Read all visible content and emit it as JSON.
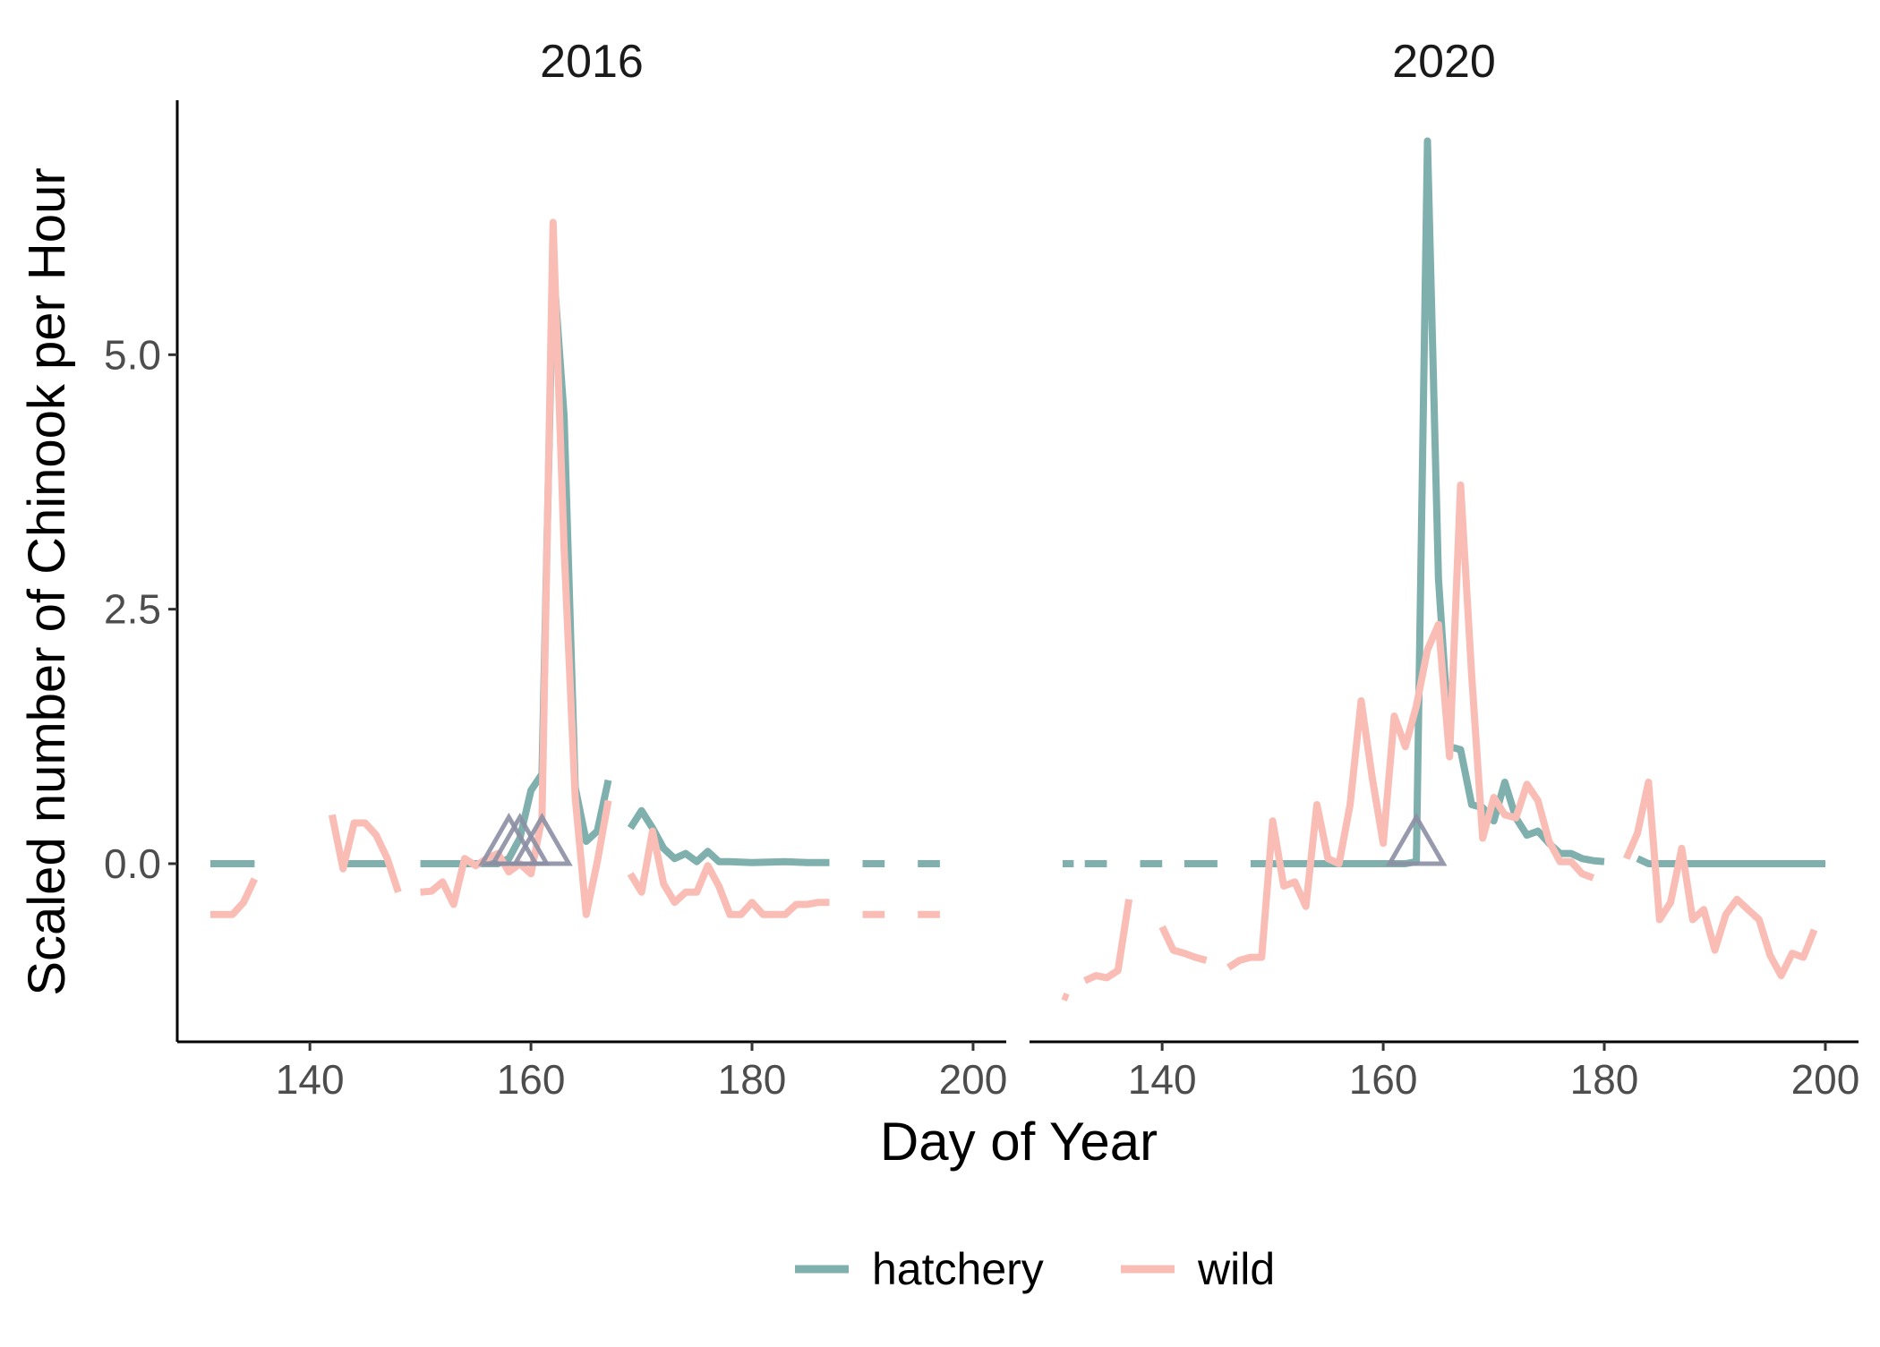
{
  "chart_data": {
    "type": "line",
    "xlabel": "Day of Year",
    "ylabel": "Scaled number of Chinook per Hour",
    "xlim": [
      128,
      203
    ],
    "ylim": [
      -1.75,
      7.5
    ],
    "x_ticks": [
      140,
      160,
      180,
      200
    ],
    "y_ticks": [
      0,
      2.5,
      5
    ],
    "y_tick_labels": [
      "0.0",
      "2.5",
      "5.0"
    ],
    "grid": false,
    "legend": {
      "position": "bottom",
      "entries": [
        "hatchery",
        "wild"
      ]
    },
    "colors": {
      "hatchery": "#7FB0AE",
      "wild": "#F9BDB5",
      "marker": "#8C8FA3"
    },
    "panels": [
      {
        "title": "2016",
        "markers": [
          158,
          159,
          161
        ],
        "series": [
          {
            "name": "hatchery",
            "segments": [
              [
                [
                  131,
                  0
                ],
                [
                  135,
                  0
                ]
              ],
              [
                [
                  143,
                  0
                ],
                [
                  147,
                  0
                ]
              ],
              [
                [
                  150,
                  0
                ],
                [
                  152,
                  0
                ],
                [
                  154,
                  0
                ],
                [
                  156,
                  0
                ],
                [
                  157,
                  0
                ],
                [
                  158,
                  0.05
                ],
                [
                  159,
                  0.25
                ],
                [
                  160,
                  0.72
                ],
                [
                  161,
                  0.88
                ],
                [
                  162,
                  5.9
                ],
                [
                  163,
                  4.4
                ],
                [
                  164,
                  0.75
                ],
                [
                  165,
                  0.22
                ],
                [
                  166,
                  0.32
                ],
                [
                  167,
                  0.82
                ]
              ],
              [
                [
                  169,
                  0.35
                ],
                [
                  170,
                  0.52
                ],
                [
                  171,
                  0.35
                ],
                [
                  172,
                  0.15
                ],
                [
                  173,
                  0.05
                ],
                [
                  174,
                  0.1
                ],
                [
                  175,
                  0.02
                ],
                [
                  176,
                  0.12
                ],
                [
                  177,
                  0.02
                ],
                [
                  178,
                  0.02
                ],
                [
                  180,
                  0.01
                ],
                [
                  183,
                  0.02
                ],
                [
                  185,
                  0.01
                ],
                [
                  187,
                  0.01
                ]
              ],
              [
                [
                  190,
                  0
                ],
                [
                  192,
                  0
                ]
              ],
              [
                [
                  195,
                  0
                ],
                [
                  197,
                  0
                ]
              ]
            ]
          },
          {
            "name": "wild",
            "segments": [
              [
                [
                  131,
                  -0.5
                ],
                [
                  133,
                  -0.5
                ],
                [
                  134,
                  -0.38
                ],
                [
                  135,
                  -0.15
                ]
              ],
              [
                [
                  142,
                  0.48
                ],
                [
                  143,
                  -0.05
                ],
                [
                  144,
                  0.4
                ],
                [
                  145,
                  0.4
                ],
                [
                  146,
                  0.28
                ],
                [
                  147,
                  0.05
                ],
                [
                  148,
                  -0.28
                ]
              ],
              [
                [
                  150,
                  -0.28
                ],
                [
                  151,
                  -0.27
                ],
                [
                  152,
                  -0.18
                ],
                [
                  153,
                  -0.4
                ],
                [
                  154,
                  0.05
                ],
                [
                  155,
                  -0.02
                ],
                [
                  156,
                  0.05
                ],
                [
                  157,
                  0.1
                ],
                [
                  158,
                  -0.08
                ],
                [
                  159,
                  0.0
                ],
                [
                  160,
                  -0.1
                ],
                [
                  161,
                  0.45
                ],
                [
                  162,
                  6.3
                ],
                [
                  163,
                  3.1
                ],
                [
                  164,
                  0.65
                ],
                [
                  165,
                  -0.5
                ],
                [
                  166,
                  0.02
                ],
                [
                  167,
                  0.62
                ]
              ],
              [
                [
                  169,
                  -0.1
                ],
                [
                  170,
                  -0.28
                ],
                [
                  171,
                  0.32
                ],
                [
                  172,
                  -0.2
                ],
                [
                  173,
                  -0.38
                ],
                [
                  174,
                  -0.28
                ],
                [
                  175,
                  -0.28
                ],
                [
                  176,
                  -0.02
                ],
                [
                  177,
                  -0.22
                ],
                [
                  178,
                  -0.5
                ],
                [
                  179,
                  -0.5
                ],
                [
                  180,
                  -0.38
                ],
                [
                  181,
                  -0.5
                ],
                [
                  182,
                  -0.5
                ],
                [
                  183,
                  -0.5
                ],
                [
                  184,
                  -0.4
                ],
                [
                  185,
                  -0.4
                ],
                [
                  186,
                  -0.38
                ],
                [
                  187,
                  -0.38
                ]
              ],
              [
                [
                  190,
                  -0.5
                ],
                [
                  192,
                  -0.5
                ]
              ],
              [
                [
                  195,
                  -0.5
                ],
                [
                  197,
                  -0.5
                ]
              ]
            ]
          }
        ]
      },
      {
        "title": "2020",
        "markers": [
          163
        ],
        "series": [
          {
            "name": "hatchery",
            "segments": [
              [
                [
                  131,
                  0
                ],
                [
                  132,
                  0
                ]
              ],
              [
                [
                  133,
                  0
                ],
                [
                  135,
                  0
                ]
              ],
              [
                [
                  138,
                  0
                ],
                [
                  140,
                  0
                ]
              ],
              [
                [
                  142,
                  0
                ],
                [
                  145,
                  0
                ]
              ],
              [
                [
                  148,
                  0
                ],
                [
                  150,
                  0
                ]
              ],
              [
                [
                  150,
                  0
                ],
                [
                  152,
                  0
                ],
                [
                  154,
                  0
                ],
                [
                  156,
                  0
                ],
                [
                  158,
                  0
                ],
                [
                  160,
                  0
                ],
                [
                  162,
                  0
                ],
                [
                  163,
                  0.02
                ],
                [
                  164,
                  7.1
                ],
                [
                  165,
                  2.8
                ],
                [
                  166,
                  1.15
                ],
                [
                  167,
                  1.12
                ],
                [
                  168,
                  0.58
                ],
                [
                  169,
                  0.55
                ],
                [
                  170,
                  0.42
                ],
                [
                  171,
                  0.8
                ],
                [
                  172,
                  0.45
                ],
                [
                  173,
                  0.28
                ],
                [
                  174,
                  0.32
                ],
                [
                  175,
                  0.2
                ],
                [
                  176,
                  0.1
                ],
                [
                  177,
                  0.1
                ],
                [
                  178,
                  0.05
                ],
                [
                  179,
                  0.03
                ],
                [
                  180,
                  0.02
                ]
              ],
              [
                [
                  183,
                  0.05
                ],
                [
                  184,
                  0
                ],
                [
                  186,
                  0
                ],
                [
                  188,
                  0
                ],
                [
                  190,
                  0
                ],
                [
                  192,
                  0
                ],
                [
                  194,
                  0
                ],
                [
                  196,
                  0
                ],
                [
                  198,
                  0
                ],
                [
                  200,
                  0
                ]
              ]
            ]
          },
          {
            "name": "wild",
            "segments": [
              [
                [
                  131,
                  -1.3
                ],
                [
                  131.5,
                  -1.32
                ]
              ],
              [
                [
                  133,
                  -1.15
                ],
                [
                  134,
                  -1.1
                ],
                [
                  135,
                  -1.12
                ],
                [
                  136,
                  -1.05
                ],
                [
                  137,
                  -0.35
                ]
              ],
              [
                [
                  140,
                  -0.62
                ],
                [
                  141,
                  -0.85
                ],
                [
                  142,
                  -0.88
                ],
                [
                  143,
                  -0.92
                ],
                [
                  144,
                  -0.95
                ]
              ],
              [
                [
                  146,
                  -1.02
                ],
                [
                  147,
                  -0.95
                ],
                [
                  148,
                  -0.92
                ],
                [
                  149,
                  -0.92
                ],
                [
                  150,
                  0.42
                ],
                [
                  151,
                  -0.22
                ],
                [
                  152,
                  -0.18
                ],
                [
                  153,
                  -0.42
                ],
                [
                  154,
                  0.58
                ],
                [
                  155,
                  0.05
                ],
                [
                  156,
                  0.0
                ],
                [
                  157,
                  0.58
                ],
                [
                  158,
                  1.6
                ],
                [
                  159,
                  0.85
                ],
                [
                  160,
                  0.2
                ],
                [
                  161,
                  1.45
                ],
                [
                  162,
                  1.15
                ],
                [
                  163,
                  1.55
                ],
                [
                  164,
                  2.1
                ],
                [
                  165,
                  2.35
                ],
                [
                  166,
                  1.05
                ],
                [
                  167,
                  3.72
                ],
                [
                  168,
                  1.85
                ],
                [
                  169,
                  0.25
                ],
                [
                  170,
                  0.65
                ],
                [
                  171,
                  0.48
                ],
                [
                  172,
                  0.45
                ],
                [
                  173,
                  0.78
                ],
                [
                  174,
                  0.62
                ],
                [
                  175,
                  0.22
                ],
                [
                  176,
                  0.02
                ],
                [
                  177,
                  0.02
                ],
                [
                  178,
                  -0.1
                ],
                [
                  179,
                  -0.14
                ]
              ],
              [
                [
                  182,
                  0.05
                ],
                [
                  183,
                  0.3
                ],
                [
                  184,
                  0.8
                ],
                [
                  185,
                  -0.55
                ],
                [
                  186,
                  -0.38
                ],
                [
                  187,
                  0.15
                ],
                [
                  188,
                  -0.55
                ],
                [
                  189,
                  -0.45
                ],
                [
                  190,
                  -0.85
                ],
                [
                  191,
                  -0.5
                ],
                [
                  192,
                  -0.35
                ],
                [
                  193,
                  -0.45
                ],
                [
                  194,
                  -0.55
                ],
                [
                  195,
                  -0.9
                ],
                [
                  196,
                  -1.1
                ],
                [
                  197,
                  -0.88
                ],
                [
                  198,
                  -0.92
                ],
                [
                  199,
                  -0.65
                ]
              ]
            ]
          }
        ]
      }
    ]
  }
}
